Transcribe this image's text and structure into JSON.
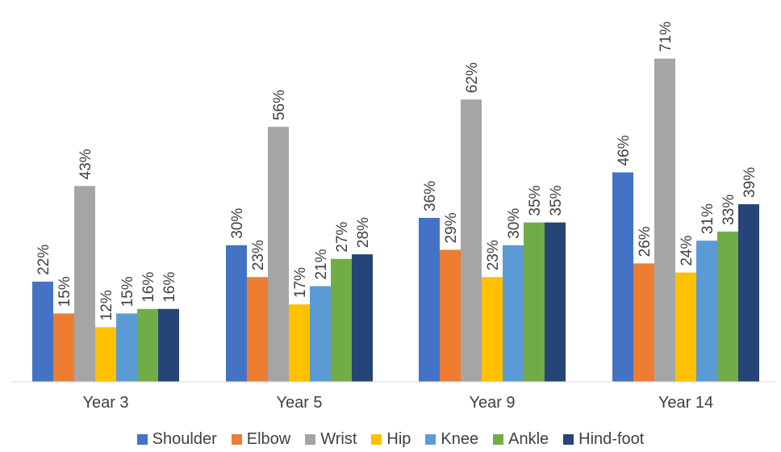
{
  "chart_data": {
    "type": "bar",
    "categories": [
      "Year 3",
      "Year 5",
      "Year 9",
      "Year 14"
    ],
    "value_suffix": "%",
    "ylim": [
      0,
      80
    ],
    "grid": false,
    "legend_position": "bottom",
    "series": [
      {
        "name": "Shoulder",
        "color": "#4472C4",
        "values": [
          22,
          30,
          36,
          46
        ]
      },
      {
        "name": "Elbow",
        "color": "#ED7D31",
        "values": [
          15,
          23,
          29,
          26
        ]
      },
      {
        "name": "Wrist",
        "color": "#A5A5A5",
        "values": [
          43,
          56,
          62,
          71
        ]
      },
      {
        "name": "Hip",
        "color": "#FFC000",
        "values": [
          12,
          17,
          23,
          24
        ]
      },
      {
        "name": "Knee",
        "color": "#5B9BD5",
        "values": [
          15,
          21,
          30,
          31
        ]
      },
      {
        "name": "Ankle",
        "color": "#70AD47",
        "values": [
          16,
          27,
          35,
          33
        ]
      },
      {
        "name": "Hind-foot",
        "color": "#264478",
        "values": [
          16,
          28,
          35,
          39
        ]
      }
    ]
  }
}
